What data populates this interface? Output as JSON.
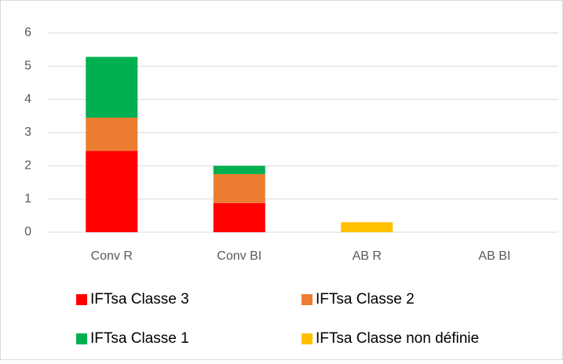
{
  "chart_data": {
    "type": "stacked_bar",
    "categories": [
      "Conv R",
      "Conv BI",
      "AB R",
      "AB BI"
    ],
    "series": [
      {
        "name": "IFTsa Classe 3",
        "color": "#ff0000",
        "values": [
          2.45,
          0.88,
          0,
          0
        ]
      },
      {
        "name": "IFTsa Classe 2",
        "color": "#ed7d31",
        "values": [
          1.0,
          0.87,
          0,
          0
        ]
      },
      {
        "name": "IFTsa Classe 1",
        "color": "#00b050",
        "values": [
          1.83,
          0.25,
          0,
          0
        ]
      },
      {
        "name": "IFTsa Classe non définie",
        "color": "#ffc000",
        "values": [
          0,
          0,
          0.3,
          0
        ]
      }
    ],
    "ylim": [
      0,
      6
    ],
    "yticks": [
      0,
      1,
      2,
      3,
      4,
      5,
      6
    ],
    "grid": true,
    "legend": "bottom"
  }
}
